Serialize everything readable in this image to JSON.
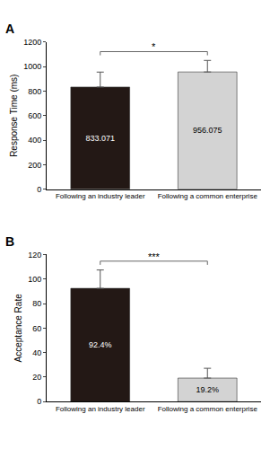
{
  "chart_data": [
    {
      "type": "bar",
      "panel_label": "A",
      "significance": "*",
      "y_label": "Response Time (ms)",
      "categories": [
        "Following an industry leader",
        "Following a common enterprise"
      ],
      "values": [
        833.071,
        956.075
      ],
      "error": [
        122,
        94
      ],
      "colors": [
        "#231815",
        "#d3d3d3"
      ],
      "data_labels": true,
      "ylim": [
        0,
        1200
      ],
      "yticks": [
        0,
        200,
        400,
        600,
        800,
        1000,
        1200
      ],
      "grid": false
    },
    {
      "type": "bar",
      "panel_label": "B",
      "significance": "***",
      "y_label": "Acceptance Rate",
      "categories": [
        "Following an industry leader",
        "Following a common enterprise"
      ],
      "values": [
        92.4,
        19.2
      ],
      "value_labels": [
        "92.4%",
        "19.2%"
      ],
      "error": [
        15,
        8
      ],
      "colors": [
        "#231815",
        "#d3d3d3"
      ],
      "data_labels": true,
      "ylim": [
        0,
        120
      ],
      "yticks": [
        0,
        20,
        40,
        60,
        80,
        100,
        120
      ],
      "grid": false
    }
  ]
}
